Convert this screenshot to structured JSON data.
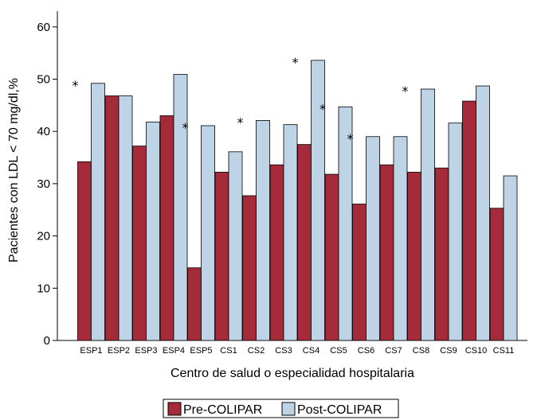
{
  "chart_data": {
    "type": "bar",
    "categories": [
      "ESP1",
      "ESP2",
      "ESP3",
      "ESP4",
      "ESP5",
      "CS1",
      "CS2",
      "CS3",
      "CS4",
      "CS5",
      "CS6",
      "CS7",
      "CS8",
      "CS9",
      "CS10",
      "CS11"
    ],
    "series": [
      {
        "name": "Pre-COLIPAR",
        "color": "#a52a3a",
        "values": [
          34.2,
          46.8,
          37.2,
          43.0,
          13.9,
          32.2,
          27.7,
          33.6,
          37.5,
          31.8,
          26.1,
          33.6,
          32.2,
          33.0,
          45.8,
          25.3
        ]
      },
      {
        "name": "Post-COLIPAR",
        "color": "#bed3e6",
        "values": [
          49.2,
          46.8,
          41.8,
          50.9,
          41.1,
          36.1,
          42.1,
          41.3,
          53.6,
          44.7,
          39.0,
          39.0,
          48.1,
          41.6,
          48.7,
          31.5
        ]
      }
    ],
    "significance_marker": "*",
    "significant_categories": [
      "ESP1",
      "ESP5",
      "CS2",
      "CS4",
      "CS5",
      "CS6",
      "CS8"
    ],
    "xlabel": "Centro de salud o especialidad hospitalaria",
    "ylabel": "Pacientes con LDL < 70 mg/dl,%",
    "ylim": [
      0,
      65
    ],
    "yticks": [
      0,
      10,
      20,
      30,
      40,
      50,
      60
    ],
    "grid": false,
    "legend_position": "bottom-center"
  }
}
